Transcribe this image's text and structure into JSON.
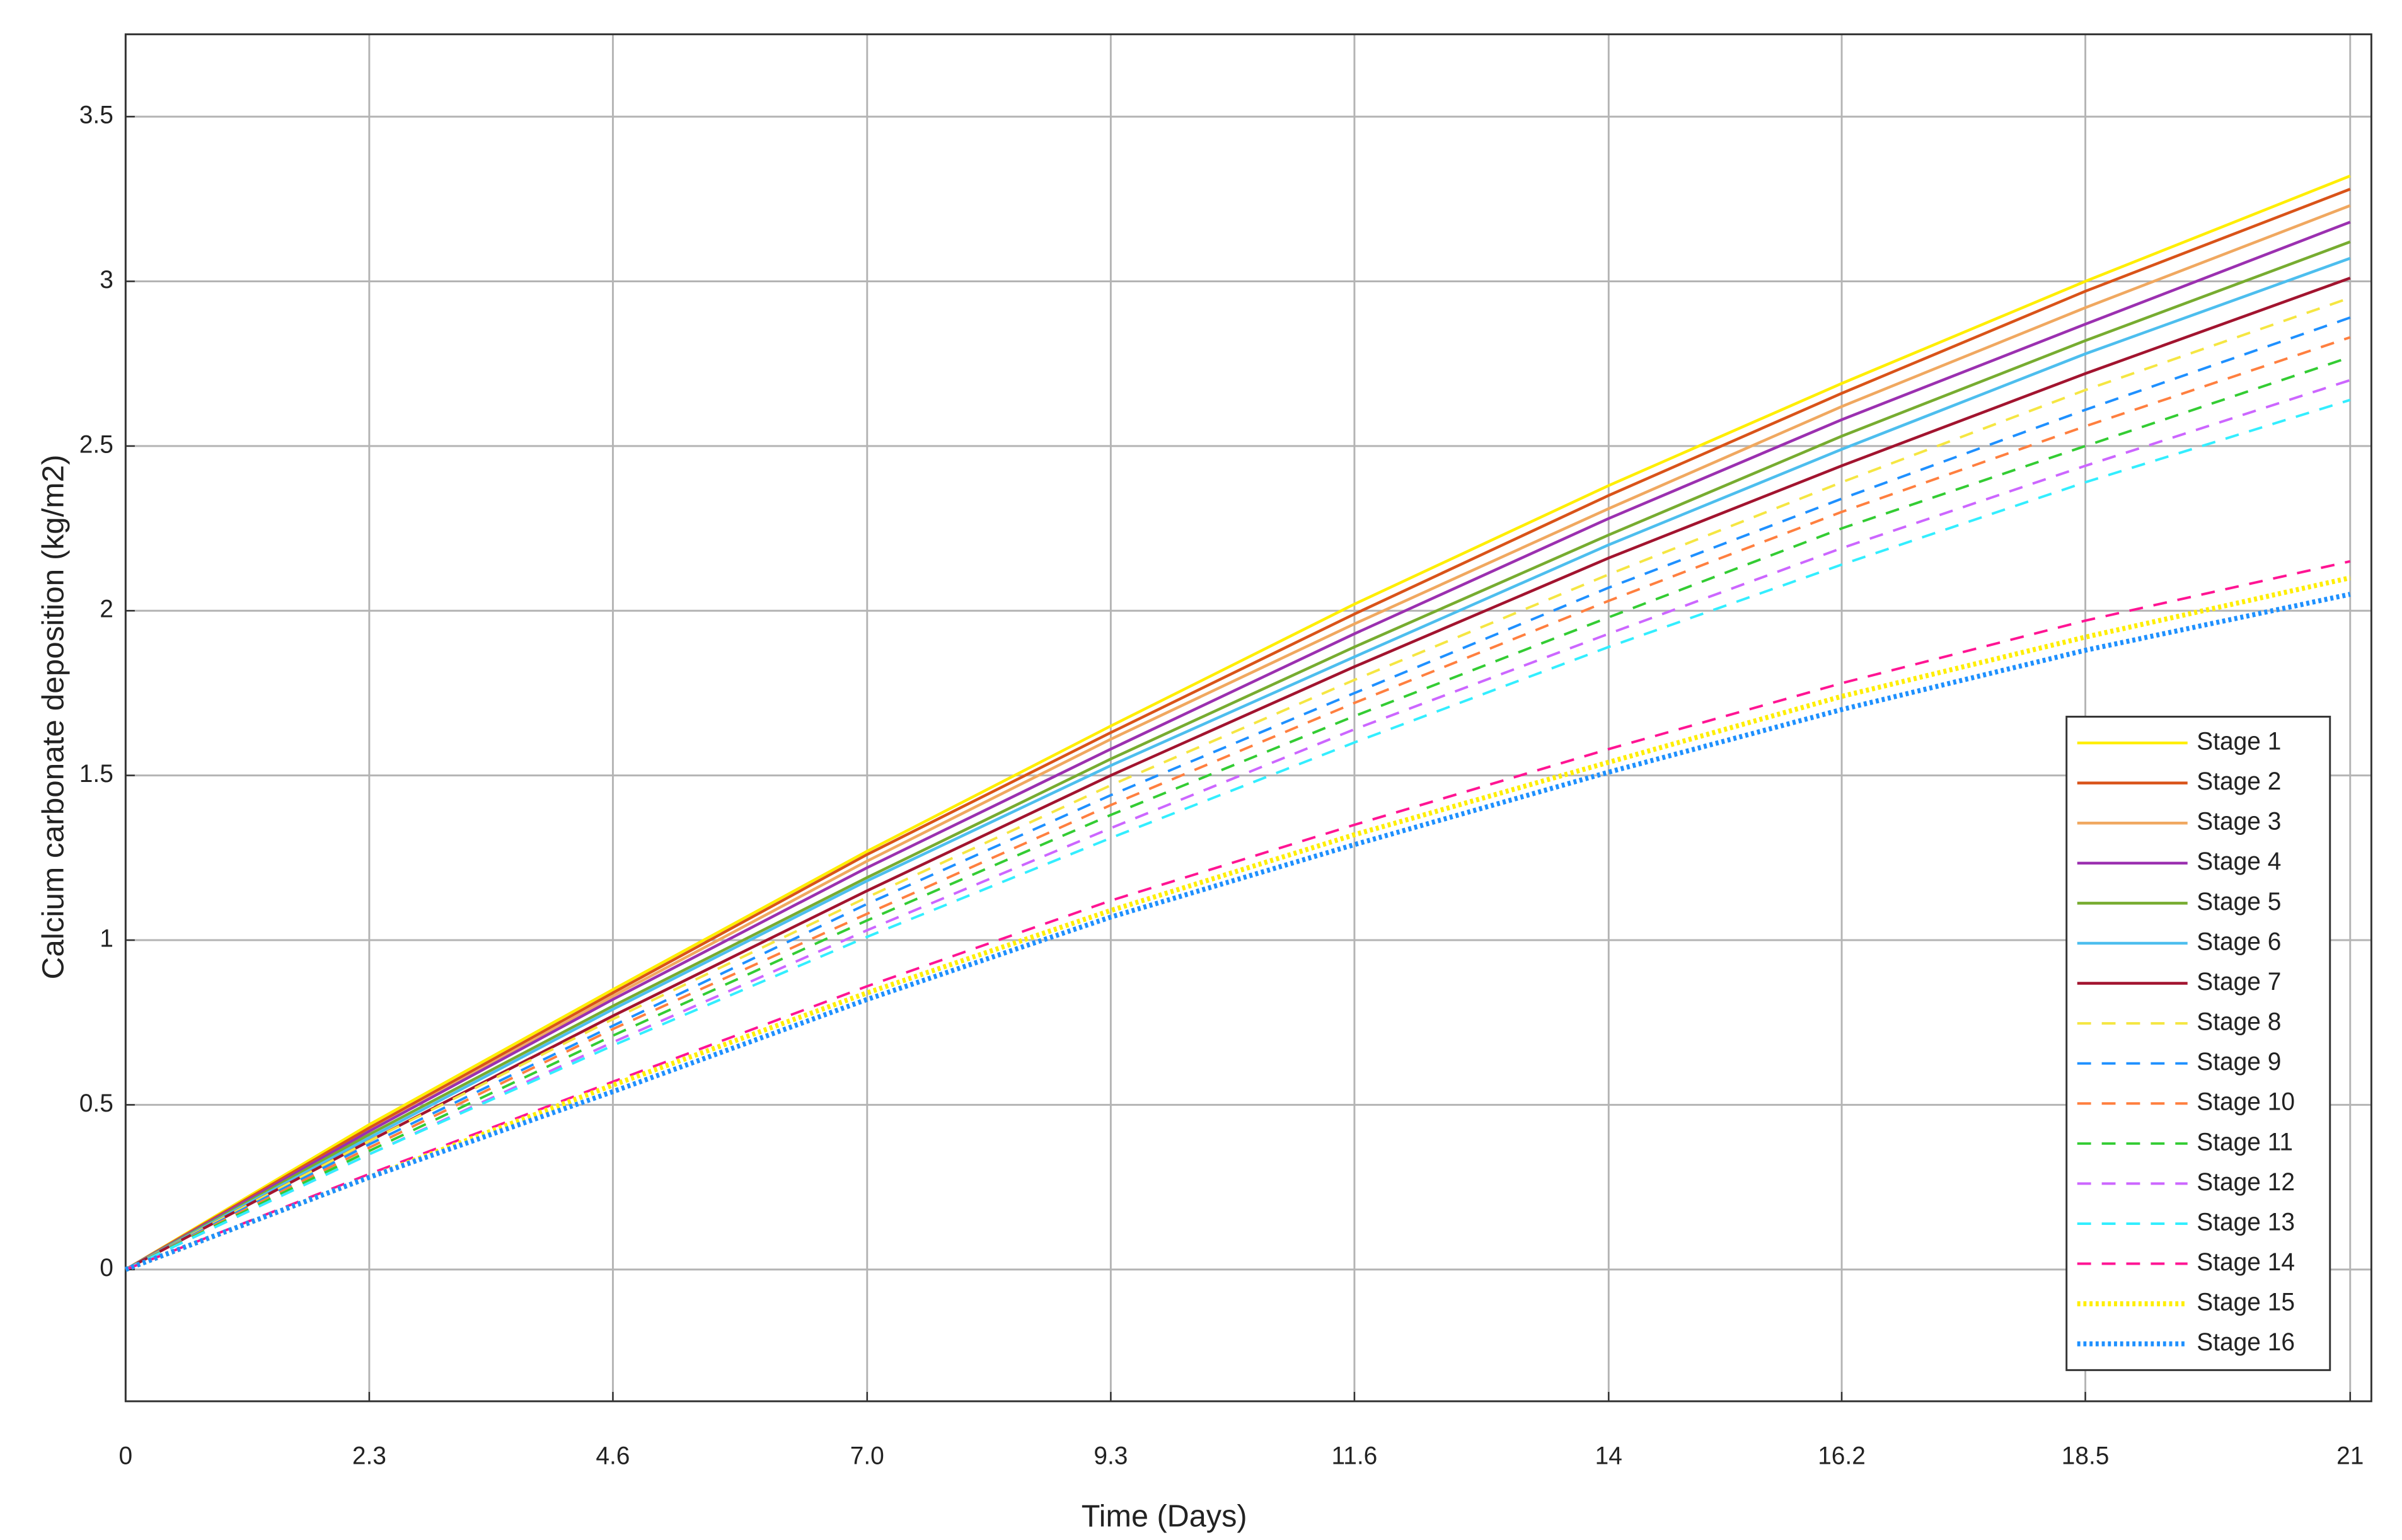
{
  "chart_data": {
    "type": "line",
    "xlabel": "Time (Days)",
    "ylabel": "Calcium carbonate deposition (kg/m2)",
    "x": [
      0,
      2.3,
      4.6,
      7,
      9.3,
      11.6,
      14,
      16.2,
      18.5,
      21
    ],
    "xlim": [
      0,
      21.2
    ],
    "xticks": [
      0,
      2.3,
      4.6,
      {
        "value": 7,
        "label": "7.0"
      },
      9.3,
      11.6,
      14,
      16.2,
      18.5,
      21
    ],
    "ylim": [
      -0.4,
      3.75
    ],
    "yticks": [
      0,
      0.5,
      1,
      1.5,
      2,
      2.5,
      3,
      3.5
    ],
    "grid": true,
    "legend": "lower right",
    "series": [
      {
        "name": "Stage 1",
        "color": "#ffee00",
        "dash": "solid",
        "values": [
          0,
          0.44,
          0.85,
          1.27,
          1.65,
          2.02,
          2.38,
          2.69,
          3.0,
          3.32
        ]
      },
      {
        "name": "Stage 2",
        "color": "#d95319",
        "dash": "solid",
        "values": [
          0,
          0.43,
          0.84,
          1.26,
          1.63,
          1.99,
          2.35,
          2.66,
          2.97,
          3.28
        ]
      },
      {
        "name": "Stage 3",
        "color": "#f0a860",
        "dash": "solid",
        "values": [
          0,
          0.42,
          0.83,
          1.24,
          1.61,
          1.96,
          2.31,
          2.62,
          2.92,
          3.23
        ]
      },
      {
        "name": "Stage 4",
        "color": "#9b30b0",
        "dash": "solid",
        "values": [
          0,
          0.42,
          0.82,
          1.22,
          1.58,
          1.93,
          2.28,
          2.58,
          2.87,
          3.18
        ]
      },
      {
        "name": "Stage 5",
        "color": "#77ac30",
        "dash": "solid",
        "values": [
          0,
          0.41,
          0.8,
          1.19,
          1.55,
          1.89,
          2.23,
          2.53,
          2.82,
          3.12
        ]
      },
      {
        "name": "Stage 6",
        "color": "#4dbeee",
        "dash": "solid",
        "values": [
          0,
          0.4,
          0.79,
          1.18,
          1.53,
          1.86,
          2.2,
          2.49,
          2.78,
          3.07
        ]
      },
      {
        "name": "Stage 7",
        "color": "#a2142f",
        "dash": "solid",
        "values": [
          0,
          0.39,
          0.77,
          1.15,
          1.5,
          1.83,
          2.16,
          2.44,
          2.72,
          3.01
        ]
      },
      {
        "name": "Stage 8",
        "color": "#f5e642",
        "dash": "dashed",
        "values": [
          0,
          0.39,
          0.76,
          1.13,
          1.47,
          1.79,
          2.11,
          2.39,
          2.67,
          2.95
        ]
      },
      {
        "name": "Stage 9",
        "color": "#1e90ff",
        "dash": "dashed",
        "values": [
          0,
          0.38,
          0.74,
          1.11,
          1.44,
          1.75,
          2.07,
          2.34,
          2.61,
          2.89
        ]
      },
      {
        "name": "Stage 10",
        "color": "#ff7f3f",
        "dash": "dashed",
        "values": [
          0,
          0.37,
          0.73,
          1.08,
          1.41,
          1.72,
          2.03,
          2.3,
          2.56,
          2.83
        ]
      },
      {
        "name": "Stage 11",
        "color": "#33cc33",
        "dash": "dashed",
        "values": [
          0,
          0.36,
          0.71,
          1.06,
          1.38,
          1.68,
          1.98,
          2.25,
          2.5,
          2.77
        ]
      },
      {
        "name": "Stage 12",
        "color": "#cc66ff",
        "dash": "dashed",
        "values": [
          0,
          0.35,
          0.69,
          1.03,
          1.34,
          1.64,
          1.93,
          2.19,
          2.44,
          2.7
        ]
      },
      {
        "name": "Stage 13",
        "color": "#33eeff",
        "dash": "dashed",
        "values": [
          0,
          0.35,
          0.68,
          1.01,
          1.31,
          1.6,
          1.89,
          2.14,
          2.39,
          2.64
        ]
      },
      {
        "name": "Stage 14",
        "color": "#ff1493",
        "dash": "dashed",
        "values": [
          0,
          0.29,
          0.57,
          0.86,
          1.12,
          1.35,
          1.58,
          1.78,
          1.97,
          2.15
        ]
      },
      {
        "name": "Stage 15",
        "color": "#ffee00",
        "dash": "dotted",
        "values": [
          0,
          0.28,
          0.56,
          0.84,
          1.09,
          1.32,
          1.54,
          1.74,
          1.92,
          2.1
        ]
      },
      {
        "name": "Stage 16",
        "color": "#1e90ff",
        "dash": "dotted",
        "values": [
          0,
          0.28,
          0.54,
          0.82,
          1.07,
          1.29,
          1.51,
          1.7,
          1.88,
          2.05
        ]
      }
    ]
  }
}
